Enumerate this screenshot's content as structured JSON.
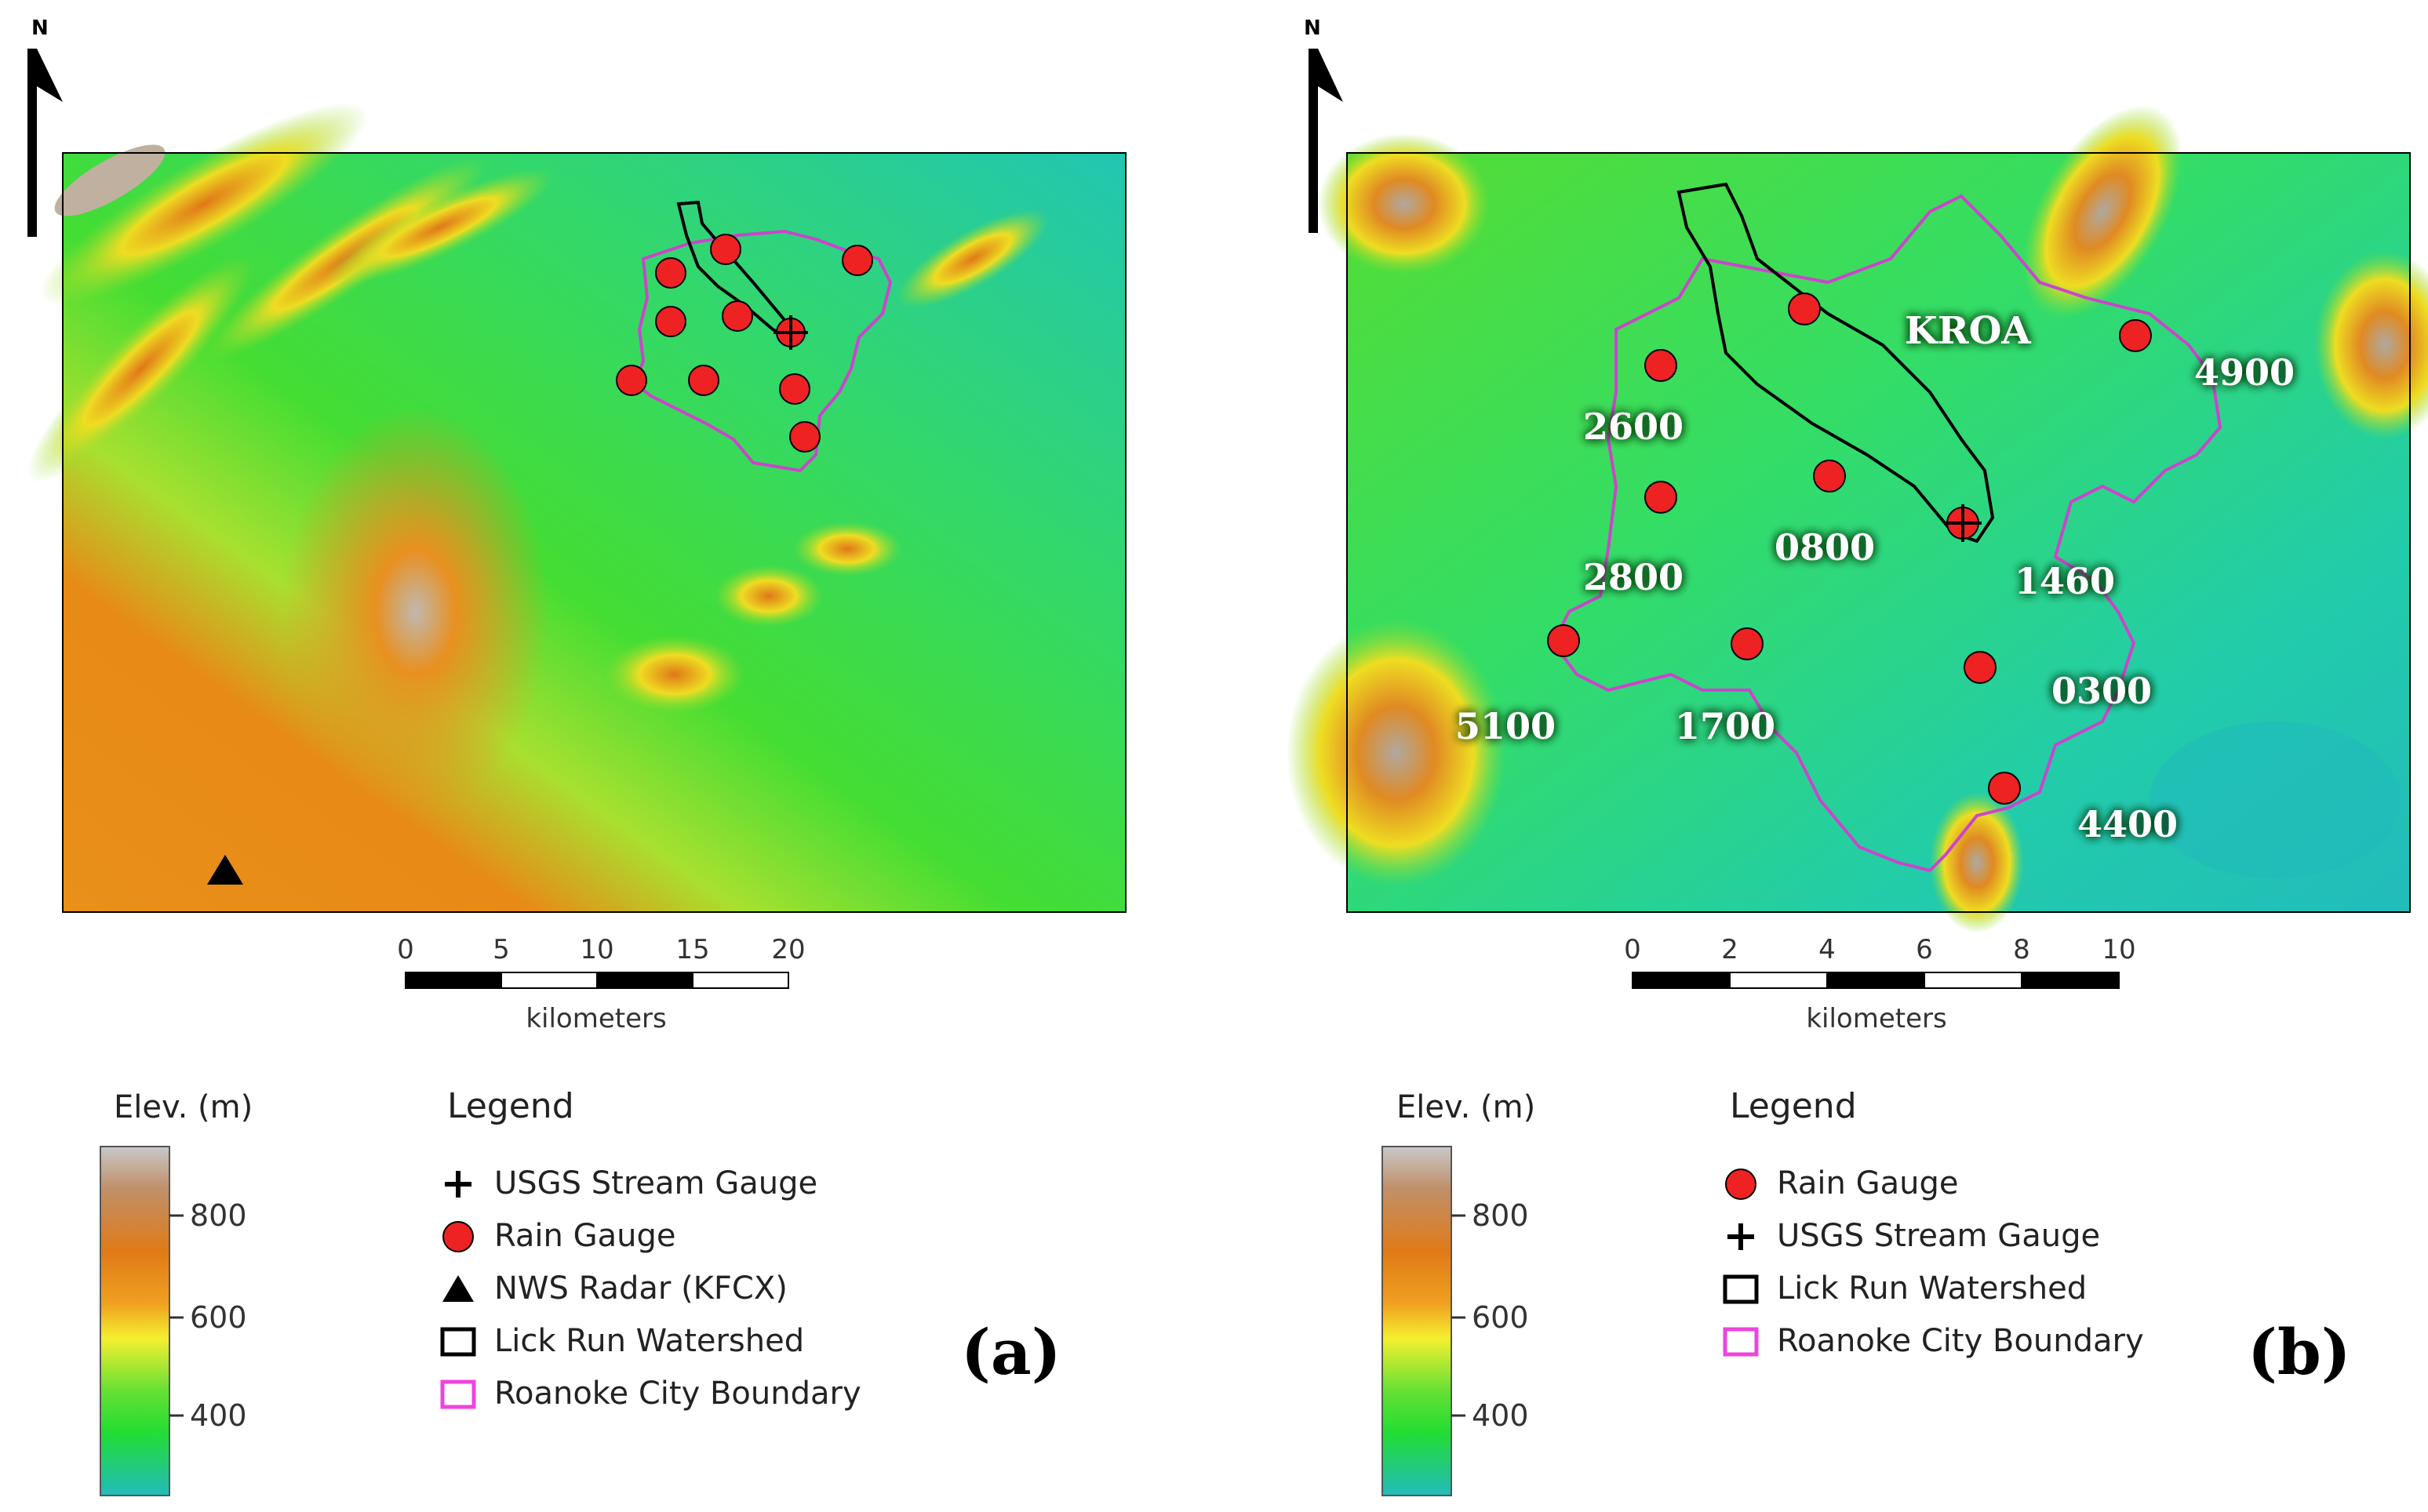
{
  "north_label": "N",
  "panel_a": {
    "panel_label": "(a)",
    "scale": {
      "ticks": [
        "0",
        "5",
        "10",
        "15",
        "20"
      ],
      "unit": "kilometers"
    },
    "elev_title": "Elev. (m)",
    "elev_ticks": [
      "800",
      "600",
      "400"
    ],
    "legend_title": "Legend",
    "legend_items": [
      {
        "label": "USGS Stream Gauge",
        "symbol": "plus"
      },
      {
        "label": "Rain Gauge",
        "symbol": "red-circle"
      },
      {
        "label": "NWS Radar (KFCX)",
        "symbol": "triangle"
      },
      {
        "label": "Lick Run Watershed",
        "symbol": "black-box"
      },
      {
        "label": "Roanoke City Boundary",
        "symbol": "magenta-box"
      }
    ]
  },
  "panel_b": {
    "panel_label": "(b)",
    "scale": {
      "ticks": [
        "0",
        "2",
        "4",
        "6",
        "8",
        "10"
      ],
      "unit": "kilometers"
    },
    "elev_title": "Elev. (m)",
    "elev_ticks": [
      "800",
      "600",
      "400"
    ],
    "legend_title": "Legend",
    "legend_items": [
      {
        "label": "Rain Gauge",
        "symbol": "red-circle"
      },
      {
        "label": "USGS Stream Gauge",
        "symbol": "plus"
      },
      {
        "label": "Lick Run Watershed",
        "symbol": "black-box"
      },
      {
        "label": "Roanoke City Boundary",
        "symbol": "magenta-box"
      }
    ],
    "radar_label": "KROA",
    "gauge_labels": [
      "2600",
      "2800",
      "0800",
      "1460",
      "5100",
      "1700",
      "0300",
      "4400",
      "4900"
    ]
  },
  "colors": {
    "rain_gauge": "#ee2222",
    "boundary": "#cc44cc",
    "watershed": "#000000",
    "elev_low": "#22bbaa",
    "elev_mid": "#33dd33",
    "elev_high": "#ee8811",
    "elev_peak": "#bbbbbb"
  }
}
